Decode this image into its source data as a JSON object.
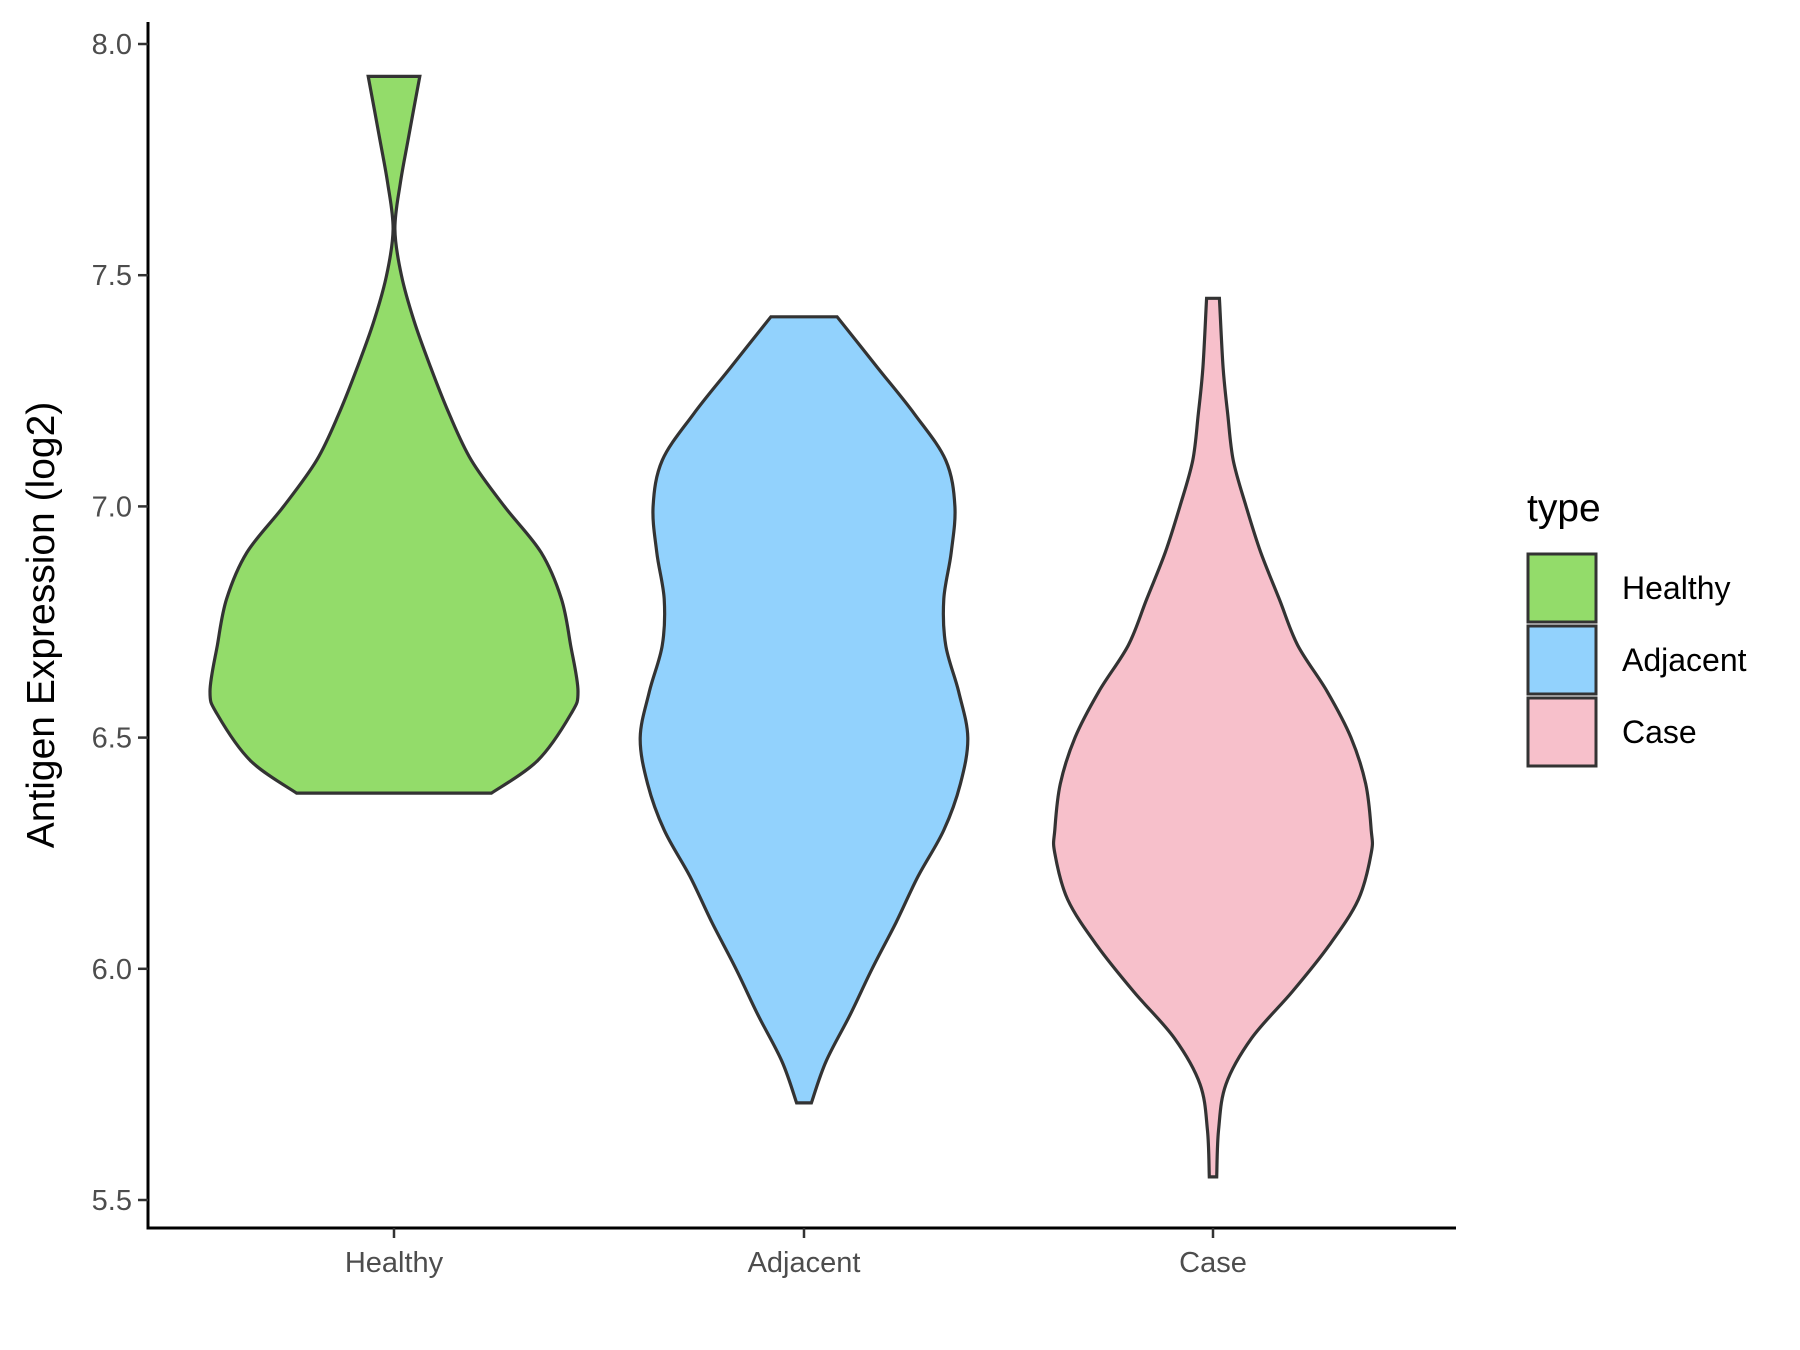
{
  "chart_data": {
    "type": "violin",
    "title": "",
    "xlabel": "",
    "ylabel": "Antigen Expression (log2)",
    "ylim": [
      5.45,
      8.05
    ],
    "yticks": [
      "5.5",
      "6.0",
      "6.5",
      "7.0",
      "7.5",
      "8.0"
    ],
    "ytick_values": [
      5.5,
      6.0,
      6.5,
      7.0,
      7.5,
      8.0
    ],
    "categories": [
      "Healthy",
      "Adjacent",
      "Case"
    ],
    "legend": {
      "title": "type",
      "position": "right",
      "entries": [
        "Healthy",
        "Adjacent",
        "Case"
      ]
    },
    "grid": false,
    "series": [
      {
        "category": "Healthy",
        "color": "#93DC6A",
        "min": 6.38,
        "max": 7.93,
        "density": [
          [
            6.38,
            0.53
          ],
          [
            6.45,
            0.78
          ],
          [
            6.55,
            0.96
          ],
          [
            6.6,
            1.0
          ],
          [
            6.7,
            0.96
          ],
          [
            6.8,
            0.91
          ],
          [
            6.9,
            0.8
          ],
          [
            7.0,
            0.6
          ],
          [
            7.1,
            0.42
          ],
          [
            7.2,
            0.3
          ],
          [
            7.3,
            0.2
          ],
          [
            7.4,
            0.11
          ],
          [
            7.5,
            0.04
          ],
          [
            7.6,
            0.005
          ],
          [
            7.7,
            0.035
          ],
          [
            7.8,
            0.08
          ],
          [
            7.93,
            0.14
          ]
        ]
      },
      {
        "category": "Adjacent",
        "color": "#92D2FD",
        "min": 5.71,
        "max": 7.41,
        "density": [
          [
            5.71,
            0.04
          ],
          [
            5.8,
            0.12
          ],
          [
            5.9,
            0.25
          ],
          [
            6.0,
            0.37
          ],
          [
            6.1,
            0.5
          ],
          [
            6.2,
            0.62
          ],
          [
            6.3,
            0.76
          ],
          [
            6.4,
            0.85
          ],
          [
            6.5,
            0.89
          ],
          [
            6.6,
            0.84
          ],
          [
            6.7,
            0.77
          ],
          [
            6.8,
            0.76
          ],
          [
            6.9,
            0.8
          ],
          [
            7.0,
            0.82
          ],
          [
            7.1,
            0.77
          ],
          [
            7.2,
            0.6
          ],
          [
            7.3,
            0.4
          ],
          [
            7.41,
            0.18
          ]
        ]
      },
      {
        "category": "Case",
        "color": "#F7C0CB",
        "min": 5.55,
        "max": 7.45,
        "density": [
          [
            5.55,
            0.02
          ],
          [
            5.65,
            0.03
          ],
          [
            5.75,
            0.07
          ],
          [
            5.85,
            0.21
          ],
          [
            5.95,
            0.43
          ],
          [
            6.05,
            0.63
          ],
          [
            6.15,
            0.79
          ],
          [
            6.25,
            0.86
          ],
          [
            6.3,
            0.86
          ],
          [
            6.4,
            0.83
          ],
          [
            6.5,
            0.75
          ],
          [
            6.6,
            0.62
          ],
          [
            6.7,
            0.46
          ],
          [
            6.8,
            0.36
          ],
          [
            6.9,
            0.26
          ],
          [
            7.0,
            0.18
          ],
          [
            7.1,
            0.11
          ],
          [
            7.2,
            0.08
          ],
          [
            7.3,
            0.055
          ],
          [
            7.45,
            0.035
          ]
        ]
      }
    ]
  }
}
